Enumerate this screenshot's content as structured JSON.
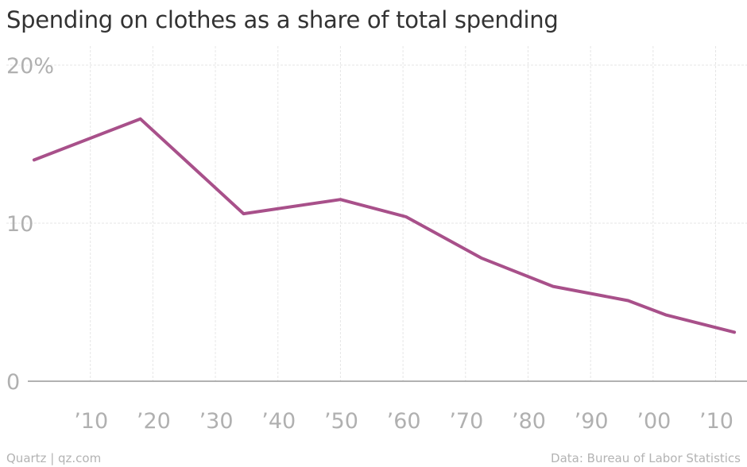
{
  "title": "Spending on clothes as a share of total spending",
  "footer": {
    "credit": "Quartz | qz.com",
    "source": "Data: Bureau of Labor Statistics"
  },
  "colors": {
    "line": "#a8508a",
    "grid": "#e6e6e6",
    "axis": "#999999",
    "tick_text": "#b0b0b0",
    "title_text": "#333333"
  },
  "chart_data": {
    "type": "line",
    "title": "Spending on clothes as a share of total spending",
    "xlabel": "",
    "ylabel": "",
    "xlim": [
      1900,
      2014
    ],
    "ylim": [
      0,
      20
    ],
    "grid": true,
    "x_ticks": [
      {
        "value": 1910,
        "label": "’10"
      },
      {
        "value": 1920,
        "label": "’20"
      },
      {
        "value": 1930,
        "label": "’30"
      },
      {
        "value": 1940,
        "label": "’40"
      },
      {
        "value": 1950,
        "label": "’50"
      },
      {
        "value": 1960,
        "label": "’60"
      },
      {
        "value": 1970,
        "label": "’70"
      },
      {
        "value": 1980,
        "label": "’80"
      },
      {
        "value": 1990,
        "label": "’90"
      },
      {
        "value": 2000,
        "label": "’00"
      },
      {
        "value": 2010,
        "label": "’10"
      }
    ],
    "y_ticks": [
      {
        "value": 0,
        "label": "0"
      },
      {
        "value": 10,
        "label": "10"
      },
      {
        "value": 20,
        "label": "20%"
      }
    ],
    "series": [
      {
        "x": [
          1901,
          1918,
          1934.5,
          1950,
          1960.5,
          1972.5,
          1984,
          1996,
          2002,
          2013
        ],
        "y": [
          14.0,
          16.6,
          10.6,
          11.5,
          10.4,
          7.8,
          6.0,
          5.1,
          4.2,
          3.1
        ]
      }
    ]
  }
}
